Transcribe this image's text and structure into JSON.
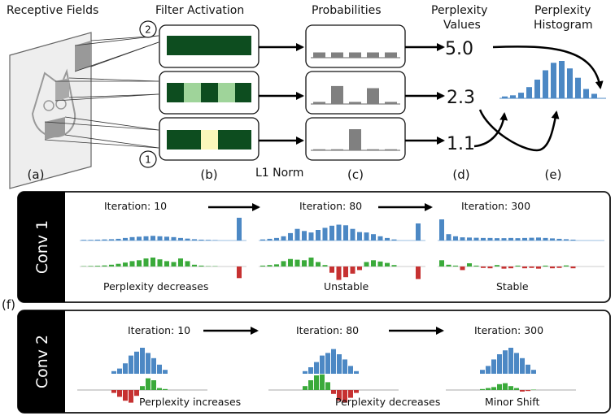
{
  "top": {
    "headers": {
      "receptive": "Receptive Fields",
      "filter": "Filter Activation",
      "prob": "Probabilities",
      "perp_values": [
        "Perplexity",
        "Values"
      ],
      "perp_hist": [
        "Perplexity",
        "Histogram"
      ]
    },
    "markers": [
      "2",
      "1"
    ],
    "values": [
      "5.0",
      "2.3",
      "1.1"
    ],
    "l1": "L1 Norm",
    "panel_labels": [
      "(a)",
      "(b)",
      "(c)",
      "(d)",
      "(e)"
    ],
    "prob_bars": [
      [
        0.25,
        0.25,
        0.25,
        0.25,
        0.25
      ],
      [
        0.1,
        0.85,
        0.1,
        0.75,
        0.1
      ],
      [
        0.05,
        0.05,
        1.0,
        0.05,
        0.05
      ]
    ],
    "hist_values": [
      0.05,
      0.08,
      0.15,
      0.3,
      0.5,
      0.75,
      0.95,
      1.0,
      0.8,
      0.55,
      0.25,
      0.12
    ],
    "colors": {
      "dark": "#0d4d1f",
      "light": "#9fd49a",
      "yellow": "#fbf7bb",
      "gray": "#808080",
      "blue": "#4c88c4",
      "green": "#3aaa3a",
      "red": "#c63131"
    }
  },
  "f_label": "(f)",
  "conv1": {
    "side": "Conv 1",
    "iterations": [
      "Iteration: 10",
      "Iteration: 80",
      "Iteration: 300"
    ],
    "captions": [
      "Perplexity decreases",
      "Unstable",
      "Stable"
    ],
    "groups": [
      {
        "blue": [
          0.03,
          0.03,
          0.04,
          0.05,
          0.06,
          0.08,
          0.12,
          0.16,
          0.18,
          0.2,
          0.22,
          0.2,
          0.18,
          0.16,
          0.12,
          0.09,
          0.06,
          0.04,
          0.03,
          0.02
        ],
        "green": [
          0.02,
          0.03,
          0.04,
          0.06,
          0.1,
          0.15,
          0.22,
          0.3,
          0.35,
          0.45,
          0.5,
          0.4,
          0.3,
          0.25,
          0.45,
          0.3,
          0.1,
          0.05,
          0.02,
          0.02
        ],
        "spike_blue": 1.0,
        "spike_red": 0.65
      },
      {
        "blue": [
          0.05,
          0.08,
          0.12,
          0.2,
          0.35,
          0.55,
          0.45,
          0.38,
          0.5,
          0.6,
          0.7,
          0.75,
          0.72,
          0.55,
          0.4,
          0.38,
          0.3,
          0.2,
          0.12,
          0.05
        ],
        "green": [
          0.05,
          0.08,
          0.12,
          0.3,
          0.42,
          0.38,
          0.35,
          0.5,
          0.25,
          0.08,
          -0.35,
          -0.75,
          -0.6,
          -0.4,
          -0.2,
          0.25,
          0.35,
          0.28,
          0.2,
          0.08
        ],
        "spike_blue": 0.75,
        "spike_red": 0.7
      },
      {
        "blue": [
          1.0,
          0.3,
          0.2,
          0.15,
          0.14,
          0.13,
          0.12,
          0.12,
          0.11,
          0.11,
          0.12,
          0.11,
          0.12,
          0.13,
          0.14,
          0.12,
          0.1,
          0.08,
          0.06,
          0.04
        ],
        "green": [
          0.35,
          0.1,
          0.05,
          -0.2,
          0.18,
          0.05,
          -0.08,
          -0.1,
          0.08,
          -0.12,
          -0.1,
          0.05,
          -0.1,
          -0.08,
          -0.12,
          0.05,
          -0.1,
          -0.08,
          0.06,
          -0.1
        ],
        "spike_blue": 0,
        "spike_red": 0
      }
    ]
  },
  "conv2": {
    "side": "Conv 2",
    "iterations": [
      "Iteration: 10",
      "Iteration: 80",
      "Iteration: 300"
    ],
    "captions": [
      "Perplexity increases",
      "Perplexity decreases",
      "Minor Shift"
    ],
    "groups": [
      {
        "blue": [
          0.1,
          0.2,
          0.4,
          0.7,
          0.85,
          1.0,
          0.8,
          0.6,
          0.35,
          0.15
        ],
        "green": [
          -0.15,
          -0.35,
          -0.55,
          -0.65,
          -0.3,
          0.2,
          0.6,
          0.5,
          0.1,
          0.05
        ]
      },
      {
        "blue": [
          0.1,
          0.25,
          0.45,
          0.7,
          0.8,
          0.95,
          0.75,
          0.55,
          0.3,
          0.1
        ],
        "green": [
          0.2,
          0.5,
          0.75,
          0.8,
          0.4,
          -0.2,
          -0.55,
          -0.65,
          -0.4,
          -0.15
        ]
      },
      {
        "blue": [
          0.15,
          0.3,
          0.55,
          0.75,
          0.9,
          1.0,
          0.8,
          0.6,
          0.35,
          0.15
        ],
        "green": [
          0.05,
          0.1,
          0.15,
          0.3,
          0.35,
          0.2,
          0.1,
          -0.08,
          -0.05,
          0.02
        ]
      }
    ]
  }
}
